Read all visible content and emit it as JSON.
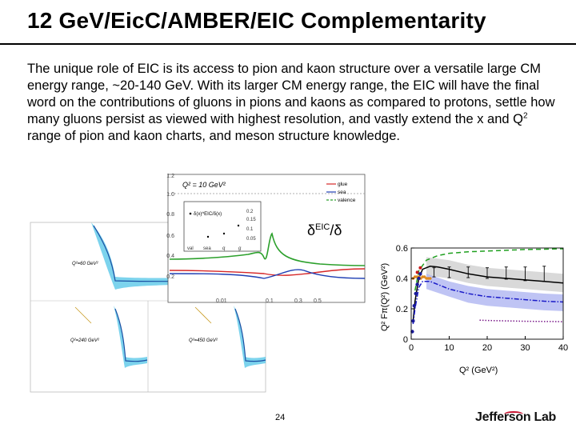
{
  "slide": {
    "title": "12 GeV/EicC/AMBER/EIC Complementarity",
    "paragraph_before_sup": "The unique role of EIC is its access to pion and kaon structure over a versatile large CM energy range, ~20-140 GeV. With its larger CM energy range, the EIC will have the final word on the contributions of gluons in pions and kaons as compared to protons, settle how many gluons persist as viewed with highest resolution, and vastly extend the x and Q",
    "paragraph_sup": "2",
    "paragraph_after_sup": " range of pion and kaon charts, and meson structure knowledge.",
    "page_number": "24",
    "logo_text": "Jefferson Lab"
  },
  "figures": {
    "left_panels": {
      "labels": [
        "Q²=60 GeV²",
        "Q²=240 GeV²",
        "Q²=450 GeV²"
      ],
      "band_color": "#5bc8e8",
      "line_color": "#1a4fa3"
    },
    "middle_plot": {
      "q2_label": "Q² = 10 GeV²",
      "legend": [
        "glue",
        "sea",
        "valence"
      ],
      "legend_colors": [
        "#d62728",
        "#1f3fb4",
        "#2ca02c"
      ],
      "inset_label": "δ(x)^EIC/δ(x)",
      "inset_ticks": [
        "0.2",
        "0.15",
        "0.1",
        "0.05"
      ],
      "inset_xlabels": [
        "val",
        "sea",
        "q",
        "g"
      ],
      "big_label_main": "δ",
      "big_label_sup": "EIC",
      "big_label_tail": "/δ",
      "y_ticks": [
        "1.2",
        "1.0",
        "0.8",
        "0.6",
        "0.4",
        "0.2"
      ],
      "x_ticks": [
        "0.01",
        "0.1",
        "0.3",
        "0.5"
      ]
    }
  },
  "chart_data": {
    "type": "line",
    "xlabel": "Q² (GeV²)",
    "ylabel": "Q² Fπ(Q²) (GeV²)",
    "xlim": [
      0,
      40
    ],
    "ylim": [
      0,
      0.6
    ],
    "x_ticks": [
      0,
      10,
      20,
      30,
      40
    ],
    "y_ticks": [
      0,
      0.2,
      0.4,
      0.6
    ],
    "series": [
      {
        "style": "green-dashed",
        "color": "#1fa01f",
        "x": [
          1,
          2,
          4,
          7,
          10,
          15,
          20,
          25,
          30,
          35,
          40
        ],
        "y": [
          0.32,
          0.45,
          0.52,
          0.55,
          0.565,
          0.575,
          0.58,
          0.585,
          0.59,
          0.592,
          0.595
        ]
      },
      {
        "style": "black-solid",
        "color": "#000000",
        "x": [
          0.5,
          1,
          2,
          3,
          5,
          7,
          10,
          15,
          20,
          25,
          30,
          35,
          40
        ],
        "y": [
          0.12,
          0.25,
          0.4,
          0.46,
          0.48,
          0.475,
          0.46,
          0.43,
          0.41,
          0.4,
          0.39,
          0.38,
          0.37
        ]
      },
      {
        "style": "blue-dashdot",
        "color": "#1a1ac8",
        "x": [
          0.5,
          1,
          2,
          3,
          5,
          7,
          10,
          15,
          20,
          25,
          30,
          35,
          40
        ],
        "y": [
          0.1,
          0.2,
          0.34,
          0.38,
          0.38,
          0.36,
          0.33,
          0.3,
          0.28,
          0.27,
          0.26,
          0.25,
          0.245
        ]
      },
      {
        "style": "purple-dotted",
        "color": "#7a1a8a",
        "x": [
          18,
          22,
          26,
          30,
          34,
          38,
          40
        ],
        "y": [
          0.125,
          0.122,
          0.12,
          0.118,
          0.117,
          0.116,
          0.115
        ]
      }
    ],
    "bands": [
      {
        "color": "#cccccc",
        "x": [
          4,
          10,
          15,
          20,
          25,
          30,
          35,
          40
        ],
        "lower": [
          0.42,
          0.4,
          0.37,
          0.35,
          0.34,
          0.33,
          0.32,
          0.31
        ],
        "upper": [
          0.54,
          0.52,
          0.49,
          0.47,
          0.46,
          0.45,
          0.44,
          0.43
        ]
      },
      {
        "color": "#aab0f0",
        "x": [
          4,
          10,
          15,
          20,
          25,
          30,
          35,
          40
        ],
        "lower": [
          0.33,
          0.28,
          0.24,
          0.22,
          0.21,
          0.2,
          0.19,
          0.185
        ],
        "upper": [
          0.43,
          0.38,
          0.35,
          0.33,
          0.32,
          0.31,
          0.3,
          0.295
        ]
      }
    ],
    "points_projected": {
      "x": [
        6,
        10,
        15,
        20,
        25,
        30,
        35
      ],
      "y": [
        0.44,
        0.44,
        0.44,
        0.435,
        0.435,
        0.43,
        0.43
      ],
      "err": [
        0.03,
        0.035,
        0.035,
        0.035,
        0.04,
        0.045,
        0.05
      ]
    },
    "points_low": {
      "color": "#e08a20",
      "x": [
        0.5,
        1,
        1.5,
        2,
        2.5,
        3,
        3.5,
        4,
        4.5,
        5
      ],
      "y": [
        0.4,
        0.41,
        0.41,
        0.41,
        0.4,
        0.41,
        0.41,
        0.4,
        0.4,
        0.4
      ]
    },
    "points_existing": {
      "color": "#1a1a9a",
      "x": [
        0.3,
        0.5,
        0.8,
        1.2,
        1.6,
        2.0,
        2.4
      ],
      "y": [
        0.05,
        0.12,
        0.22,
        0.3,
        0.36,
        0.4,
        0.43
      ]
    },
    "points_red": {
      "color": "#c81a1a",
      "x": [
        1.6,
        2.4
      ],
      "y": [
        0.44,
        0.47
      ]
    }
  }
}
